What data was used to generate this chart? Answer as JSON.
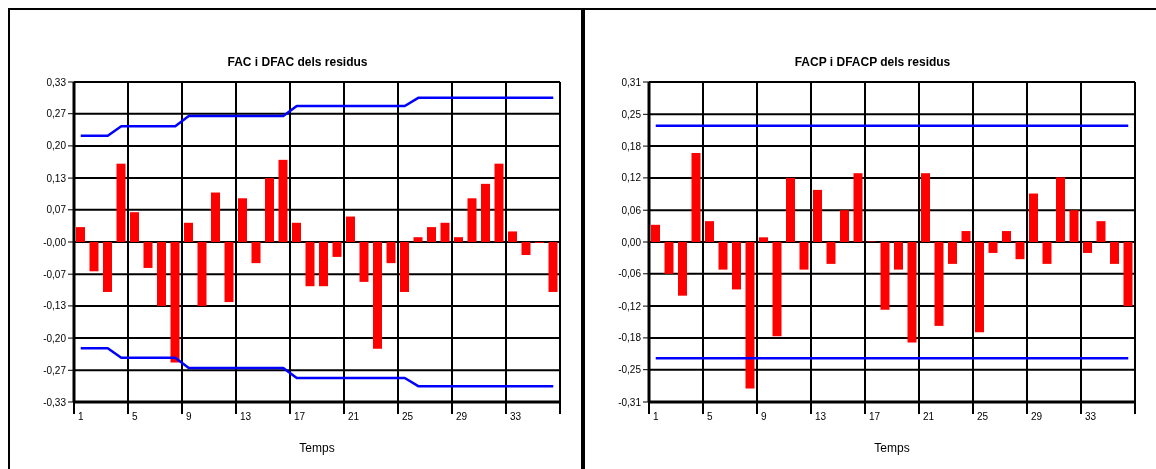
{
  "chart_data": [
    {
      "type": "bar",
      "title": "FAC i DFAC dels residus",
      "xlabel": "Temps",
      "categories": [
        "1",
        null,
        null,
        null,
        "5",
        null,
        null,
        null,
        "9",
        null,
        null,
        null,
        "13",
        null,
        null,
        null,
        "17",
        null,
        null,
        null,
        "21",
        null,
        null,
        null,
        "25",
        null,
        null,
        null,
        "29",
        null,
        null,
        null,
        "33",
        null,
        null,
        null
      ],
      "series": [
        {
          "color": "#ff0000",
          "values": [
            0.031,
            -0.061,
            -0.104,
            0.163,
            0.062,
            -0.054,
            -0.133,
            -0.251,
            0.04,
            -0.133,
            0.103,
            -0.125,
            0.091,
            -0.044,
            0.133,
            0.171,
            0.04,
            -0.092,
            -0.092,
            -0.031,
            0.053,
            -0.083,
            -0.222,
            -0.044,
            -0.104,
            0.01,
            0.031,
            0.04,
            0.01,
            0.091,
            0.121,
            0.163,
            0.022,
            -0.027,
            -0.002,
            -0.104
          ]
        },
        {
          "type": "line",
          "color": "#0000ff",
          "values": [
            0.221,
            0.221,
            0.221,
            0.241,
            0.241,
            0.241,
            0.241,
            0.241,
            0.262,
            0.262,
            0.262,
            0.262,
            0.262,
            0.262,
            0.262,
            0.262,
            0.283,
            0.283,
            0.283,
            0.283,
            0.283,
            0.283,
            0.283,
            0.283,
            0.283,
            0.3,
            0.3,
            0.3,
            0.3,
            0.3,
            0.3,
            0.3,
            0.3,
            0.3,
            0.3,
            0.3
          ]
        },
        {
          "type": "line",
          "color": "#0000ff",
          "values": [
            -0.221,
            -0.221,
            -0.221,
            -0.241,
            -0.241,
            -0.241,
            -0.241,
            -0.241,
            -0.262,
            -0.262,
            -0.262,
            -0.262,
            -0.262,
            -0.262,
            -0.262,
            -0.262,
            -0.283,
            -0.283,
            -0.283,
            -0.283,
            -0.283,
            -0.283,
            -0.283,
            -0.283,
            -0.283,
            -0.3,
            -0.3,
            -0.3,
            -0.3,
            -0.3,
            -0.3,
            -0.3,
            -0.3,
            -0.3,
            -0.3,
            -0.3
          ]
        }
      ],
      "ylim": [
        -0.333,
        0.333
      ],
      "yticks": [
        {
          "value": -0.333,
          "label": "-0,33"
        },
        {
          "value": -0.267,
          "label": "-0,27"
        },
        {
          "value": -0.2,
          "label": "-0,20"
        },
        {
          "value": -0.133,
          "label": "-0,13"
        },
        {
          "value": -0.067,
          "label": "-0,07"
        },
        {
          "value": 0,
          "label": "-0,00"
        },
        {
          "value": 0.067,
          "label": "0,07"
        },
        {
          "value": 0.133,
          "label": "0,13"
        },
        {
          "value": 0.2,
          "label": "0,20"
        },
        {
          "value": 0.267,
          "label": "0,27"
        },
        {
          "value": 0.333,
          "label": "0,33"
        }
      ],
      "grid": true,
      "legend": false,
      "marker": "none",
      "line_style": "solid"
    },
    {
      "type": "bar",
      "title": "FACP i DFACP dels residus",
      "xlabel": "Temps",
      "categories": [
        "1",
        null,
        null,
        null,
        "5",
        null,
        null,
        null,
        "9",
        null,
        null,
        null,
        "13",
        null,
        null,
        null,
        "17",
        null,
        null,
        null,
        "21",
        null,
        null,
        null,
        "25",
        null,
        null,
        null,
        "29",
        null,
        null,
        null,
        "33",
        null,
        null,
        null
      ],
      "series": [
        {
          "color": "#ff0000",
          "values": [
            0.033,
            -0.061,
            -0.103,
            0.171,
            0.04,
            -0.053,
            -0.091,
            -0.281,
            0.009,
            -0.181,
            0.123,
            -0.053,
            0.1,
            -0.042,
            0.061,
            0.132,
            0.001,
            -0.13,
            -0.053,
            -0.193,
            0.132,
            -0.161,
            -0.042,
            0.021,
            -0.173,
            -0.021,
            0.021,
            -0.033,
            0.093,
            -0.042,
            0.124,
            0.061,
            -0.021,
            0.04,
            -0.042,
            -0.123
          ]
        },
        {
          "type": "line",
          "color": "#0000ff",
          "values": [
            0.223,
            0.223,
            0.223,
            0.223,
            0.223,
            0.223,
            0.223,
            0.223,
            0.223,
            0.223,
            0.223,
            0.223,
            0.223,
            0.223,
            0.223,
            0.223,
            0.223,
            0.223,
            0.223,
            0.223,
            0.223,
            0.223,
            0.223,
            0.223,
            0.223,
            0.223,
            0.223,
            0.223,
            0.223,
            0.223,
            0.223,
            0.223,
            0.223,
            0.223,
            0.223,
            0.223
          ]
        },
        {
          "type": "line",
          "color": "#0000ff",
          "values": [
            -0.223,
            -0.223,
            -0.223,
            -0.223,
            -0.223,
            -0.223,
            -0.223,
            -0.223,
            -0.223,
            -0.223,
            -0.223,
            -0.223,
            -0.223,
            -0.223,
            -0.223,
            -0.223,
            -0.223,
            -0.223,
            -0.223,
            -0.223,
            -0.223,
            -0.223,
            -0.223,
            -0.223,
            -0.223,
            -0.223,
            -0.223,
            -0.223,
            -0.223,
            -0.223,
            -0.223,
            -0.223,
            -0.223,
            -0.223,
            -0.223,
            -0.223
          ]
        }
      ],
      "ylim": [
        -0.307,
        0.307
      ],
      "yticks": [
        {
          "value": -0.307,
          "label": "-0,31"
        },
        {
          "value": -0.245,
          "label": "-0,25"
        },
        {
          "value": -0.184,
          "label": "-0,18"
        },
        {
          "value": -0.123,
          "label": "-0,12"
        },
        {
          "value": -0.061,
          "label": "-0,06"
        },
        {
          "value": 0,
          "label": "0,00"
        },
        {
          "value": 0.061,
          "label": "0,06"
        },
        {
          "value": 0.123,
          "label": "0,12"
        },
        {
          "value": 0.184,
          "label": "0,18"
        },
        {
          "value": 0.245,
          "label": "0,25"
        },
        {
          "value": 0.307,
          "label": "0,31"
        }
      ],
      "grid": true,
      "legend": false,
      "marker": "none",
      "line_style": "solid"
    }
  ]
}
